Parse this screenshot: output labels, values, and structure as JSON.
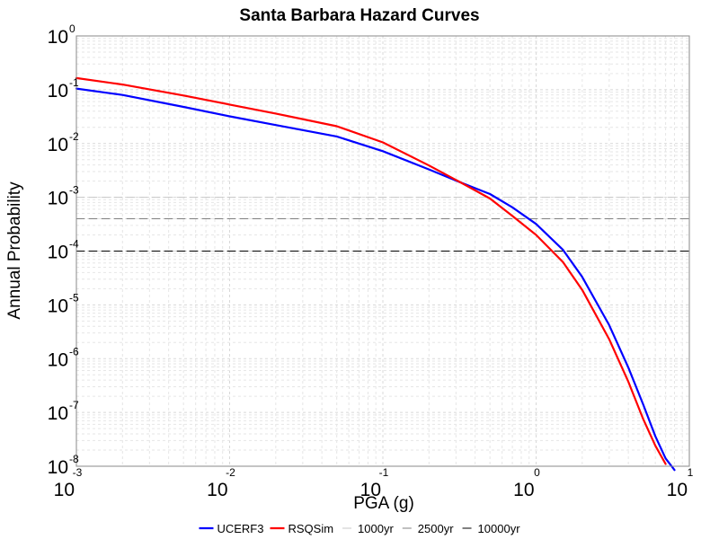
{
  "chart_data": {
    "type": "line",
    "title": "Santa Barbara Hazard Curves",
    "xlabel": "PGA (g)",
    "ylabel": "Annual Probability",
    "xscale": "log",
    "yscale": "log",
    "xlim": [
      0.001,
      10
    ],
    "ylim": [
      1e-08,
      1
    ],
    "grid": true,
    "legend_position": "bottom-center",
    "x_ticks": [
      {
        "base": "10",
        "exp": "-3"
      },
      {
        "base": "10",
        "exp": "-2"
      },
      {
        "base": "10",
        "exp": "-1"
      },
      {
        "base": "10",
        "exp": "0"
      },
      {
        "base": "10",
        "exp": "1"
      }
    ],
    "y_ticks": [
      {
        "base": "10",
        "exp": "0"
      },
      {
        "base": "10",
        "exp": "-1"
      },
      {
        "base": "10",
        "exp": "-2"
      },
      {
        "base": "10",
        "exp": "-3"
      },
      {
        "base": "10",
        "exp": "-4"
      },
      {
        "base": "10",
        "exp": "-5"
      },
      {
        "base": "10",
        "exp": "-6"
      },
      {
        "base": "10",
        "exp": "-7"
      },
      {
        "base": "10",
        "exp": "-8"
      }
    ],
    "series": [
      {
        "name": "UCERF3",
        "color": "#0000ff",
        "style": "solid",
        "points": [
          [
            0.001,
            0.105
          ],
          [
            0.002,
            0.08
          ],
          [
            0.005,
            0.048
          ],
          [
            0.01,
            0.032
          ],
          [
            0.02,
            0.022
          ],
          [
            0.05,
            0.0135
          ],
          [
            0.1,
            0.0072
          ],
          [
            0.2,
            0.0033
          ],
          [
            0.3,
            0.00205
          ],
          [
            0.5,
            0.00115
          ],
          [
            0.7,
            0.00065
          ],
          [
            1.0,
            0.00032
          ],
          [
            1.5,
            0.000105
          ],
          [
            2.0,
            3.3e-05
          ],
          [
            3.0,
            4.2e-06
          ],
          [
            4.0,
            6.8e-07
          ],
          [
            5.0,
            1.4e-07
          ],
          [
            6.0,
            3.6e-08
          ],
          [
            7.0,
            1.4e-08
          ],
          [
            8.0,
            8.5e-09
          ]
        ]
      },
      {
        "name": "RSQSim",
        "color": "#ff0000",
        "style": "solid",
        "points": [
          [
            0.001,
            0.165
          ],
          [
            0.002,
            0.125
          ],
          [
            0.005,
            0.078
          ],
          [
            0.01,
            0.053
          ],
          [
            0.02,
            0.036
          ],
          [
            0.05,
            0.021
          ],
          [
            0.1,
            0.0105
          ],
          [
            0.2,
            0.0039
          ],
          [
            0.3,
            0.0021
          ],
          [
            0.5,
            0.00095
          ],
          [
            0.7,
            0.00045
          ],
          [
            1.0,
            0.0002
          ],
          [
            1.5,
            6.2e-05
          ],
          [
            2.0,
            1.9e-05
          ],
          [
            3.0,
            2.3e-06
          ],
          [
            4.0,
            3.7e-07
          ],
          [
            5.0,
            7.5e-08
          ],
          [
            6.0,
            2.4e-08
          ],
          [
            7.0,
            1.1e-08
          ]
        ]
      },
      {
        "name": "1000yr",
        "color": "#c8c8c8",
        "style": "dashed",
        "points": [
          [
            0.001,
            0.001
          ],
          [
            10,
            0.001
          ]
        ]
      },
      {
        "name": "2500yr",
        "color": "#808080",
        "style": "dashed",
        "points": [
          [
            0.001,
            0.0004
          ],
          [
            10,
            0.0004
          ]
        ]
      },
      {
        "name": "10000yr",
        "color": "#000000",
        "style": "dashed",
        "points": [
          [
            0.001,
            0.0001
          ],
          [
            10,
            0.0001
          ]
        ]
      }
    ]
  }
}
